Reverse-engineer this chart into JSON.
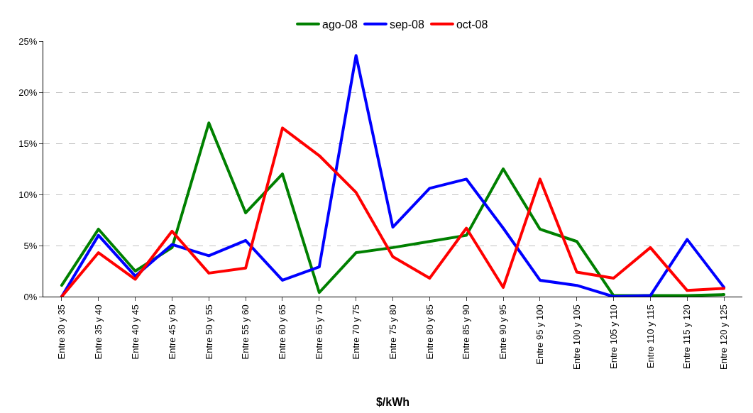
{
  "chart_data": {
    "type": "line",
    "xlabel": "$/kWh",
    "categories": [
      "Entre 30 y 35",
      "Entre 35 y 40",
      "Entre 40 y 45",
      "Entre 45 y 50",
      "Entre 50 y 55",
      "Entre 55 y 60",
      "Entre 60 y 65",
      "Entre 65 y 70",
      "Entre 70 y 75",
      "Entre 75 y 80",
      "Entre 80 y 85",
      "Entre 85 y 90",
      "Entre 90 y 95",
      "Entre 95 y 100",
      "Entre 100 y 105",
      "Entre 105 y 110",
      "Entre 110 y 115",
      "Entre 115 y 120",
      "Entre 120 y 125"
    ],
    "series": [
      {
        "name": "ago-08",
        "color": "#008000",
        "values": [
          1.1,
          6.6,
          2.5,
          4.8,
          17.0,
          8.2,
          12.0,
          0.4,
          4.3,
          4.8,
          5.4,
          6.0,
          12.5,
          6.6,
          5.4,
          0.1,
          0.1,
          0.1,
          0.2
        ]
      },
      {
        "name": "sep-08",
        "color": "#0000ff",
        "values": [
          0,
          6.0,
          2.0,
          5.1,
          4.0,
          5.5,
          1.6,
          2.9,
          23.6,
          6.8,
          10.6,
          11.5,
          6.7,
          1.6,
          1.1,
          0.0,
          0.1,
          5.6,
          0.9
        ]
      },
      {
        "name": "oct-08",
        "color": "#ff0000",
        "values": [
          0,
          4.3,
          1.7,
          6.4,
          2.3,
          2.8,
          16.5,
          13.8,
          10.2,
          3.9,
          1.8,
          6.7,
          0.9,
          11.5,
          2.4,
          1.8,
          4.8,
          0.6,
          0.8
        ]
      }
    ],
    "ylim": [
      0,
      25
    ],
    "yticks": [
      {
        "value": 0,
        "label": "0%"
      },
      {
        "value": 5,
        "label": "5%"
      },
      {
        "value": 10,
        "label": "10%"
      },
      {
        "value": 15,
        "label": "15%"
      },
      {
        "value": 20,
        "label": "20%"
      },
      {
        "value": 25,
        "label": "25%"
      }
    ],
    "grid": "y",
    "legend": "top",
    "marker": "none",
    "line_style": "solid"
  }
}
